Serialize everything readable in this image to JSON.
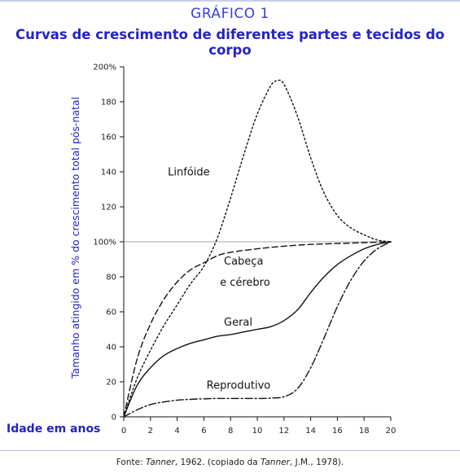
{
  "header": {
    "kicker": "GRÁFICO 1",
    "title": "Curvas de crescimento de diferentes partes e tecidos do corpo"
  },
  "source": {
    "prefix": "Fonte: ",
    "author1": "Tanner",
    "middle": ", 1962. (copiado da ",
    "author2": "Tanner",
    "suffix": ", J.M., 1978)."
  },
  "chart_data": {
    "type": "line",
    "ylabel": "Tamanho atingido em % do crescimento total pós-natal",
    "xlabel": "Idade em anos",
    "xlim": [
      0,
      20
    ],
    "ylim": [
      0,
      200
    ],
    "x_ticks": [
      0,
      2,
      4,
      6,
      8,
      10,
      12,
      14,
      16,
      18,
      20
    ],
    "y_ticks": [
      {
        "value": 0,
        "label": "0"
      },
      {
        "value": 20,
        "label": "20"
      },
      {
        "value": 40,
        "label": "40"
      },
      {
        "value": 60,
        "label": "60"
      },
      {
        "value": 80,
        "label": "80"
      },
      {
        "value": 100,
        "label": "100%"
      },
      {
        "value": 120,
        "label": "120"
      },
      {
        "value": 140,
        "label": "140"
      },
      {
        "value": 160,
        "label": "160"
      },
      {
        "value": 180,
        "label": "180"
      },
      {
        "value": 200,
        "label": "200%"
      }
    ],
    "reference_line": 100,
    "grid": false,
    "series": [
      {
        "name": "Linfóide",
        "label": "Linfóide",
        "dash": "2,3",
        "label_at": [
          3.3,
          138
        ],
        "x": [
          0,
          1,
          2,
          3,
          4,
          5,
          6,
          7,
          8,
          9,
          10,
          11,
          11.5,
          12,
          13,
          14,
          15,
          16,
          17,
          18,
          19,
          20
        ],
        "y": [
          0,
          22,
          38,
          52,
          64,
          76,
          86,
          102,
          125,
          150,
          173,
          189,
          192,
          190,
          172,
          148,
          128,
          115,
          108,
          104,
          101,
          100
        ]
      },
      {
        "name": "Cabeça e cérebro",
        "label": "Cabeça",
        "label2": "e cérebro",
        "dash": "7,4",
        "label_at": [
          7.5,
          87
        ],
        "label2_at": [
          7.2,
          75
        ],
        "x": [
          0,
          1,
          2,
          3,
          4,
          5,
          6,
          7,
          8,
          10,
          12,
          14,
          16,
          18,
          20
        ],
        "y": [
          0,
          33,
          53,
          67,
          77,
          84,
          88,
          92,
          94,
          96,
          97.5,
          98.5,
          99,
          99.5,
          100
        ]
      },
      {
        "name": "Geral",
        "label": "Geral",
        "dash": "",
        "label_at": [
          7.5,
          52
        ],
        "x": [
          0,
          1,
          2,
          3,
          4,
          5,
          6,
          7,
          8,
          9,
          10,
          11,
          12,
          13,
          14,
          15,
          16,
          17,
          18,
          19,
          20
        ],
        "y": [
          0,
          18,
          28,
          35,
          39,
          42,
          44,
          46,
          47,
          48.5,
          50,
          51.5,
          55,
          61,
          71,
          80,
          87,
          92,
          96,
          98.5,
          100
        ]
      },
      {
        "name": "Reprodutivo",
        "label": "Reprodutivo",
        "dash": "9,3,2,3",
        "label_at": [
          6.2,
          16
        ],
        "x": [
          0,
          1,
          2,
          3,
          4,
          5,
          6,
          7,
          8,
          9,
          10,
          11,
          12,
          13,
          14,
          15,
          16,
          17,
          18,
          19,
          20
        ],
        "y": [
          0,
          4,
          7,
          8.5,
          9.5,
          10,
          10.3,
          10.5,
          10.5,
          10.5,
          10.5,
          10.7,
          11.5,
          16,
          28,
          45,
          63,
          78,
          89,
          96,
          100
        ]
      }
    ]
  }
}
